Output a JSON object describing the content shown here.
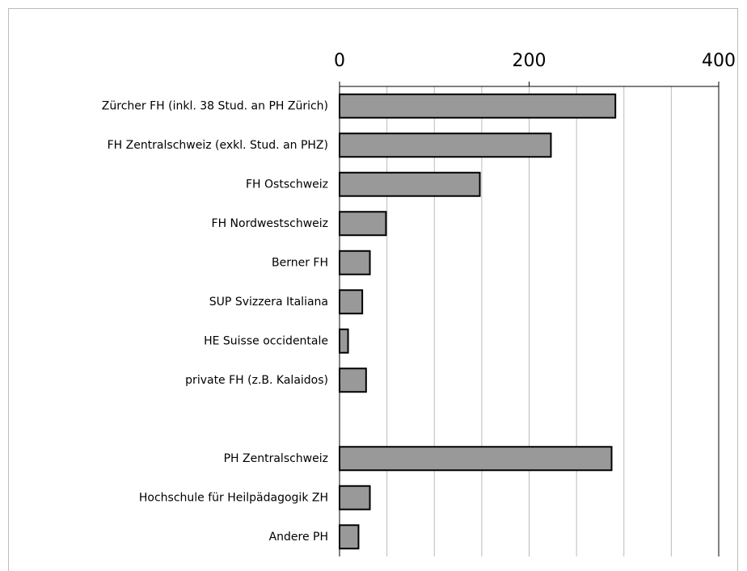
{
  "chart_data": {
    "type": "bar",
    "orientation": "horizontal",
    "categories": [
      "Zürcher FH (inkl. 38 Stud. an PH Zürich)",
      "FH Zentralschweiz (exkl. Stud. an PHZ)",
      "FH Ostschweiz",
      "FH Nordwestschweiz",
      "Berner FH",
      "SUP Svizzera Italiana",
      "HE Suisse occidentale",
      "private FH (z.B. Kalaidos)",
      null,
      "PH Zentralschweiz",
      "Hochschule für Heilpädagogik ZH",
      "Andere PH"
    ],
    "values": [
      291,
      223,
      148,
      49,
      32,
      24,
      9,
      28,
      null,
      287,
      32,
      20
    ],
    "color": "#999999",
    "xlim": [
      0,
      400
    ],
    "xticks": [
      0,
      200,
      400
    ],
    "gridlines": [
      0,
      50,
      100,
      150,
      200,
      250,
      300,
      350,
      400
    ],
    "grid": true
  }
}
